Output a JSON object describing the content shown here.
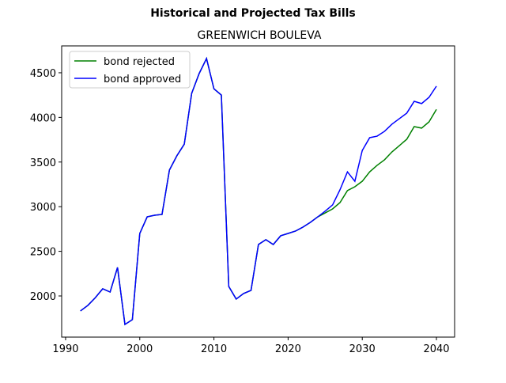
{
  "chart_data": {
    "type": "line",
    "title": "Historical and Projected Tax Bills",
    "subtitle": "GREENWICH BOULEVA",
    "x": [
      1992,
      1993,
      1994,
      1995,
      1996,
      1997,
      1998,
      1999,
      2000,
      2001,
      2002,
      2003,
      2004,
      2005,
      2006,
      2007,
      2008,
      2009,
      2010,
      2011,
      2012,
      2013,
      2014,
      2015,
      2016,
      2017,
      2018,
      2019,
      2020,
      2021,
      2022,
      2023,
      2024,
      2025,
      2026,
      2027,
      2028,
      2029,
      2030,
      2031,
      2032,
      2033,
      2034,
      2035,
      2036,
      2037,
      2038,
      2039,
      2040
    ],
    "series": [
      {
        "name": "bond rejected",
        "color": "#008000",
        "values": [
          1832,
          1894,
          1980,
          2080,
          2044,
          2319,
          1681,
          1734,
          2700,
          2886,
          2904,
          2913,
          3410,
          3570,
          3700,
          4270,
          4490,
          4660,
          4320,
          4250,
          2106,
          1965,
          2027,
          2062,
          2576,
          2630,
          2576,
          2674,
          2700,
          2727,
          2771,
          2824,
          2886,
          2930,
          2975,
          3046,
          3180,
          3223,
          3285,
          3390,
          3463,
          3525,
          3613,
          3684,
          3755,
          3897,
          3880,
          3950,
          4090
        ]
      },
      {
        "name": "bond approved",
        "color": "#0000ff",
        "values": [
          1832,
          1894,
          1980,
          2080,
          2044,
          2319,
          1681,
          1734,
          2700,
          2886,
          2904,
          2913,
          3410,
          3570,
          3700,
          4270,
          4490,
          4660,
          4320,
          4250,
          2106,
          1965,
          2027,
          2062,
          2576,
          2630,
          2576,
          2674,
          2700,
          2727,
          2771,
          2824,
          2886,
          2950,
          3020,
          3190,
          3390,
          3285,
          3630,
          3773,
          3790,
          3844,
          3924,
          3986,
          4048,
          4180,
          4155,
          4225,
          4350
        ]
      }
    ],
    "xlim": [
      1989.47,
      2042.45
    ],
    "xticks": [
      1990,
      2000,
      2010,
      2020,
      2030,
      2040
    ],
    "ylim": [
      1539,
      4801
    ],
    "yticks": [
      2000,
      2500,
      3000,
      3500,
      4000,
      4500
    ],
    "legend": "upper left",
    "grid": false
  }
}
